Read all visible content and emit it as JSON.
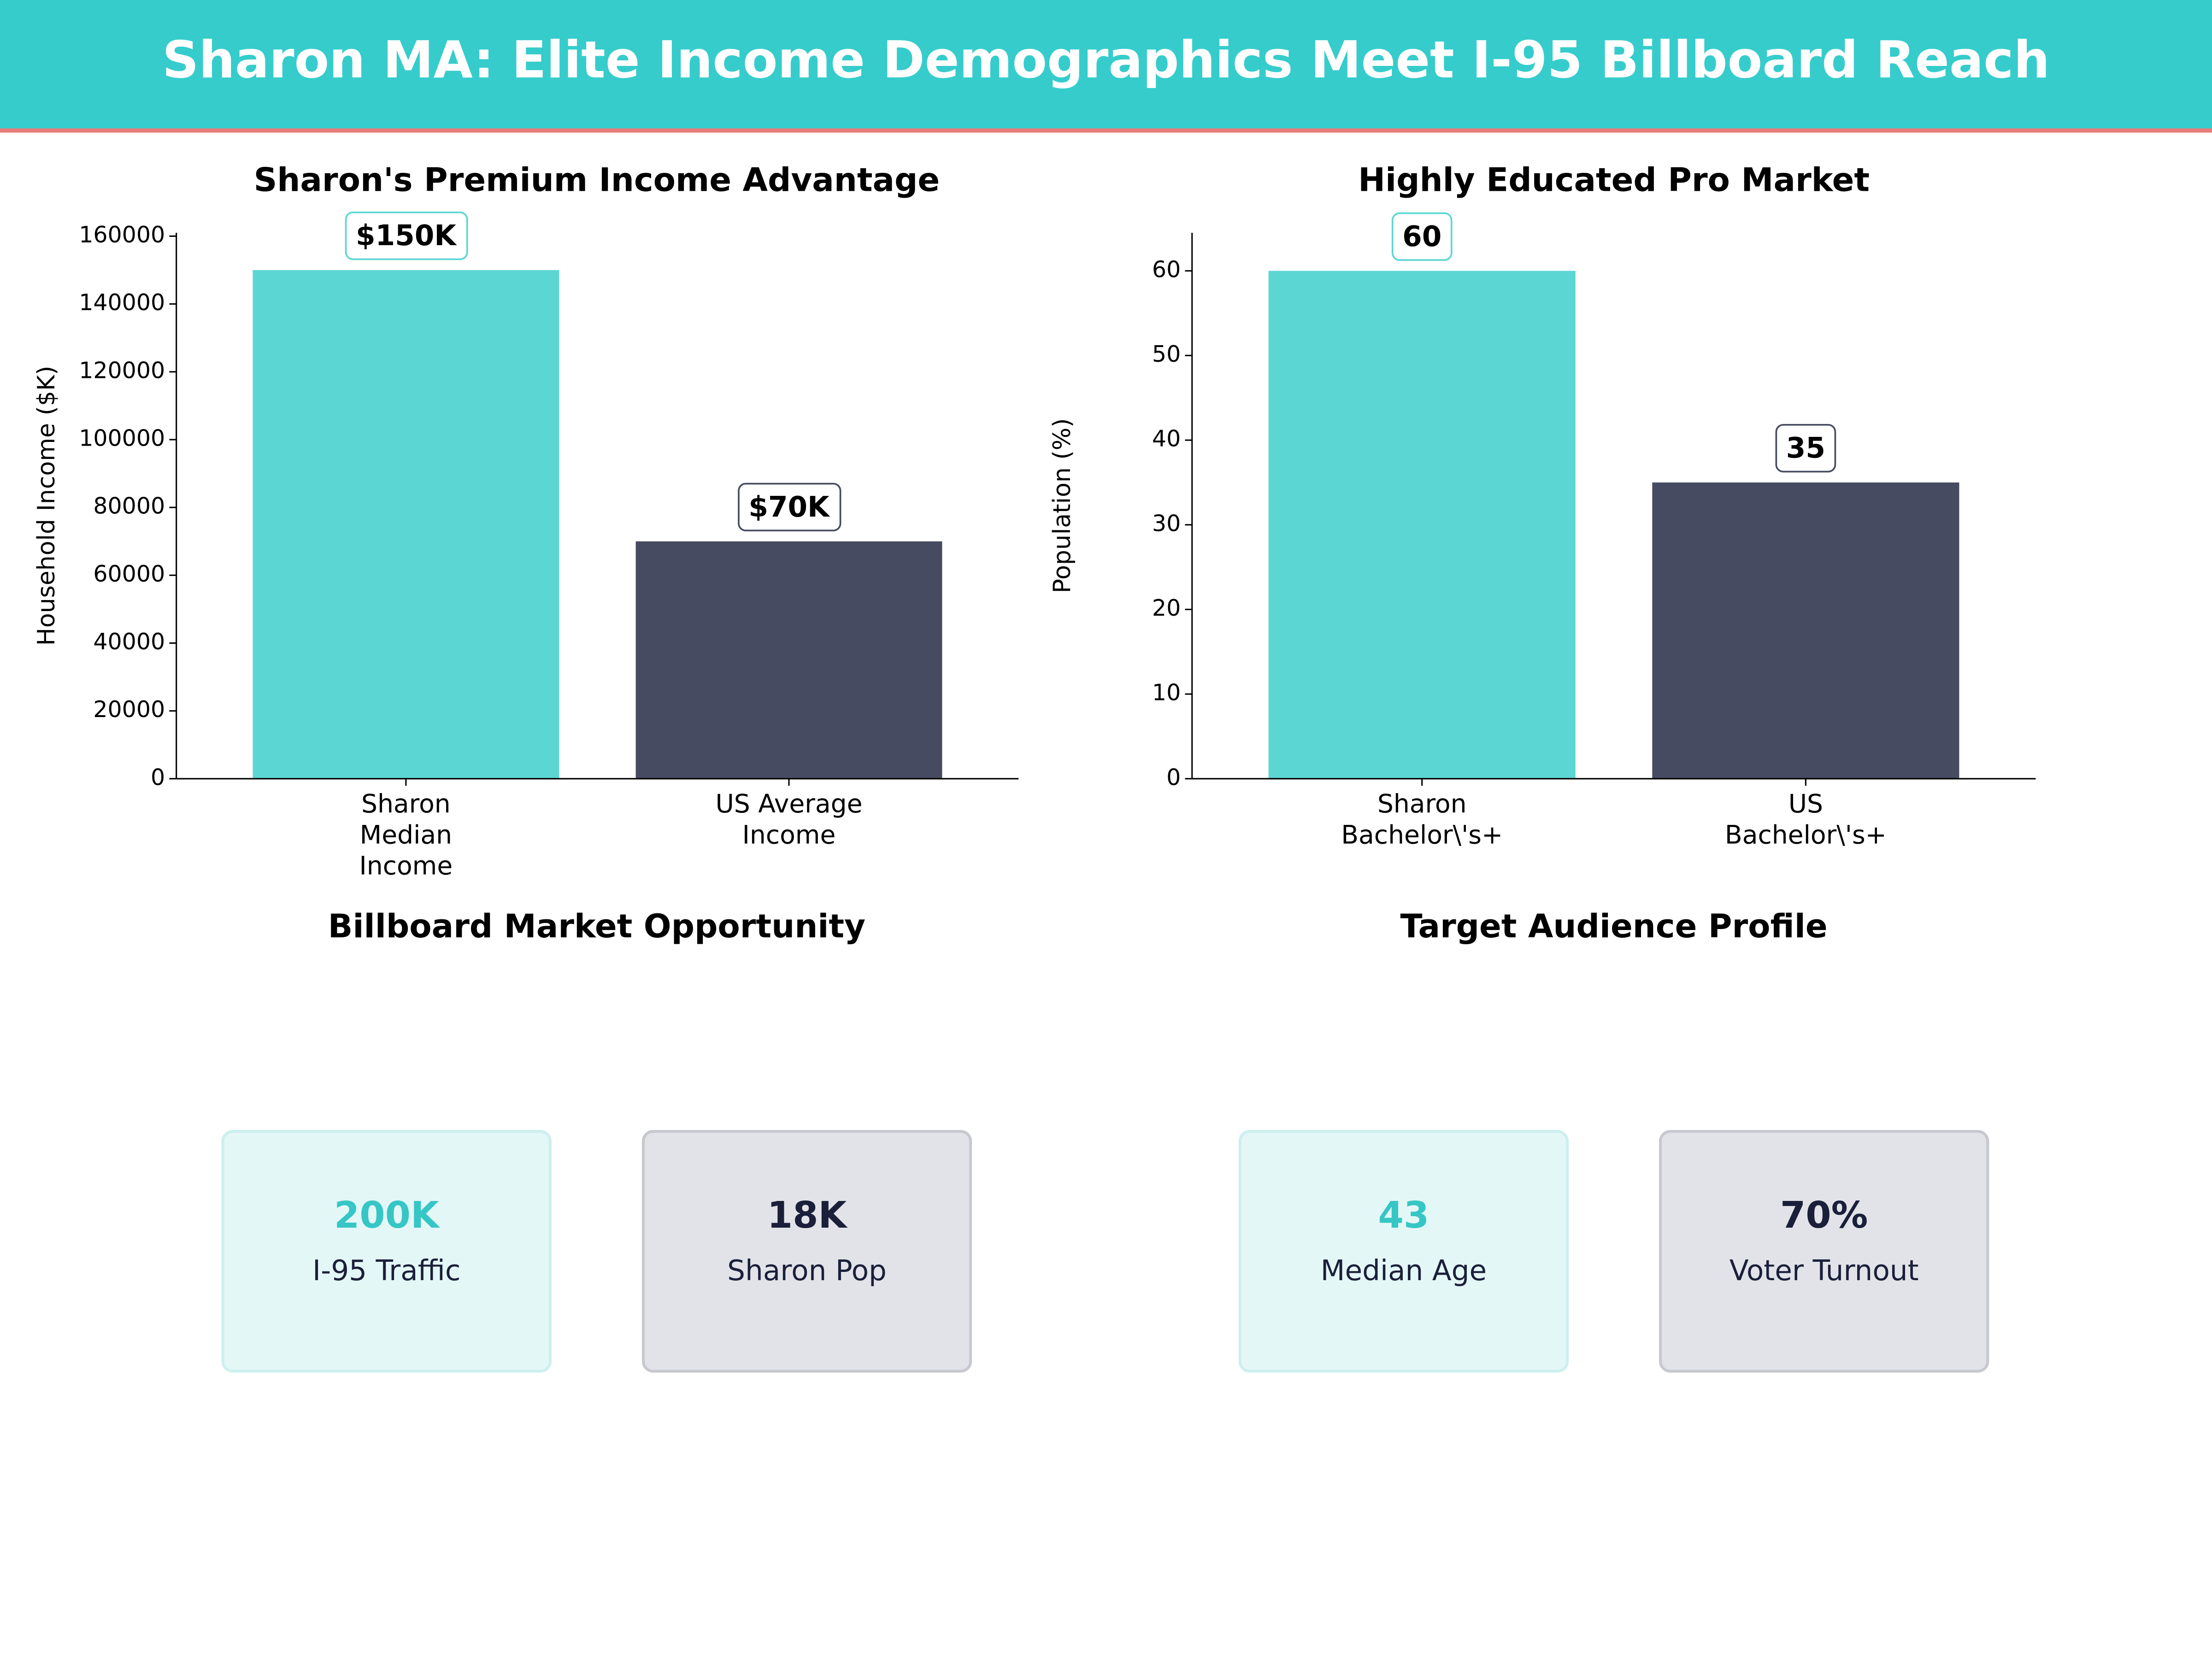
{
  "header": {
    "title": "Sharon MA: Elite Income Demographics Meet I-95 Billboard Reach",
    "color": "#36cccc",
    "rule_color": "#e87c7c"
  },
  "chart_data": [
    {
      "type": "bar",
      "title": "Sharon's Premium Income Advantage",
      "y_label": "Household Income ($K)",
      "categories": [
        "Sharon\nMedian\nIncome",
        "US Average\nIncome"
      ],
      "values": [
        150000,
        70000
      ],
      "value_labels": [
        "$150K",
        "$70K"
      ],
      "colors": [
        "#5cd6d3",
        "#474b61"
      ],
      "ylim": [
        0,
        161000
      ],
      "yticks": [
        0,
        20000,
        40000,
        60000,
        80000,
        100000,
        120000,
        140000,
        160000
      ]
    },
    {
      "type": "bar",
      "title": "Highly Educated Pro Market",
      "y_label": "Population (%)",
      "categories": [
        "Sharon\nBachelor\\'s+",
        "US\nBachelor\\'s+"
      ],
      "values": [
        60,
        35
      ],
      "colors": [
        "#5cd6d3",
        "#474b61"
      ],
      "ylim": [
        0,
        64.5
      ],
      "yticks": [
        0,
        10,
        20,
        30,
        40,
        50,
        60
      ]
    }
  ],
  "panels": [
    {
      "title": "Billboard Market Opportunity",
      "cards": [
        {
          "value": "200K",
          "label": "I-95 Traffic",
          "color": "#36c6c6",
          "background": "#e4f7f7",
          "border": "#cdefef"
        },
        {
          "value": "18K",
          "label": "Sharon Pop",
          "color": "#1a1f3a",
          "background": "#e2e3e8",
          "border": "#c8c9cf"
        }
      ]
    },
    {
      "title": "Target Audience Profile",
      "cards": [
        {
          "value": "43",
          "label": "Median Age",
          "color": "#36c6c6",
          "background": "#e4f7f7",
          "border": "#cdefef"
        },
        {
          "value": "70%",
          "label": "Voter Turnout",
          "color": "#1a1f3a",
          "background": "#e2e3e8",
          "border": "#c8c9cf"
        }
      ]
    }
  ]
}
